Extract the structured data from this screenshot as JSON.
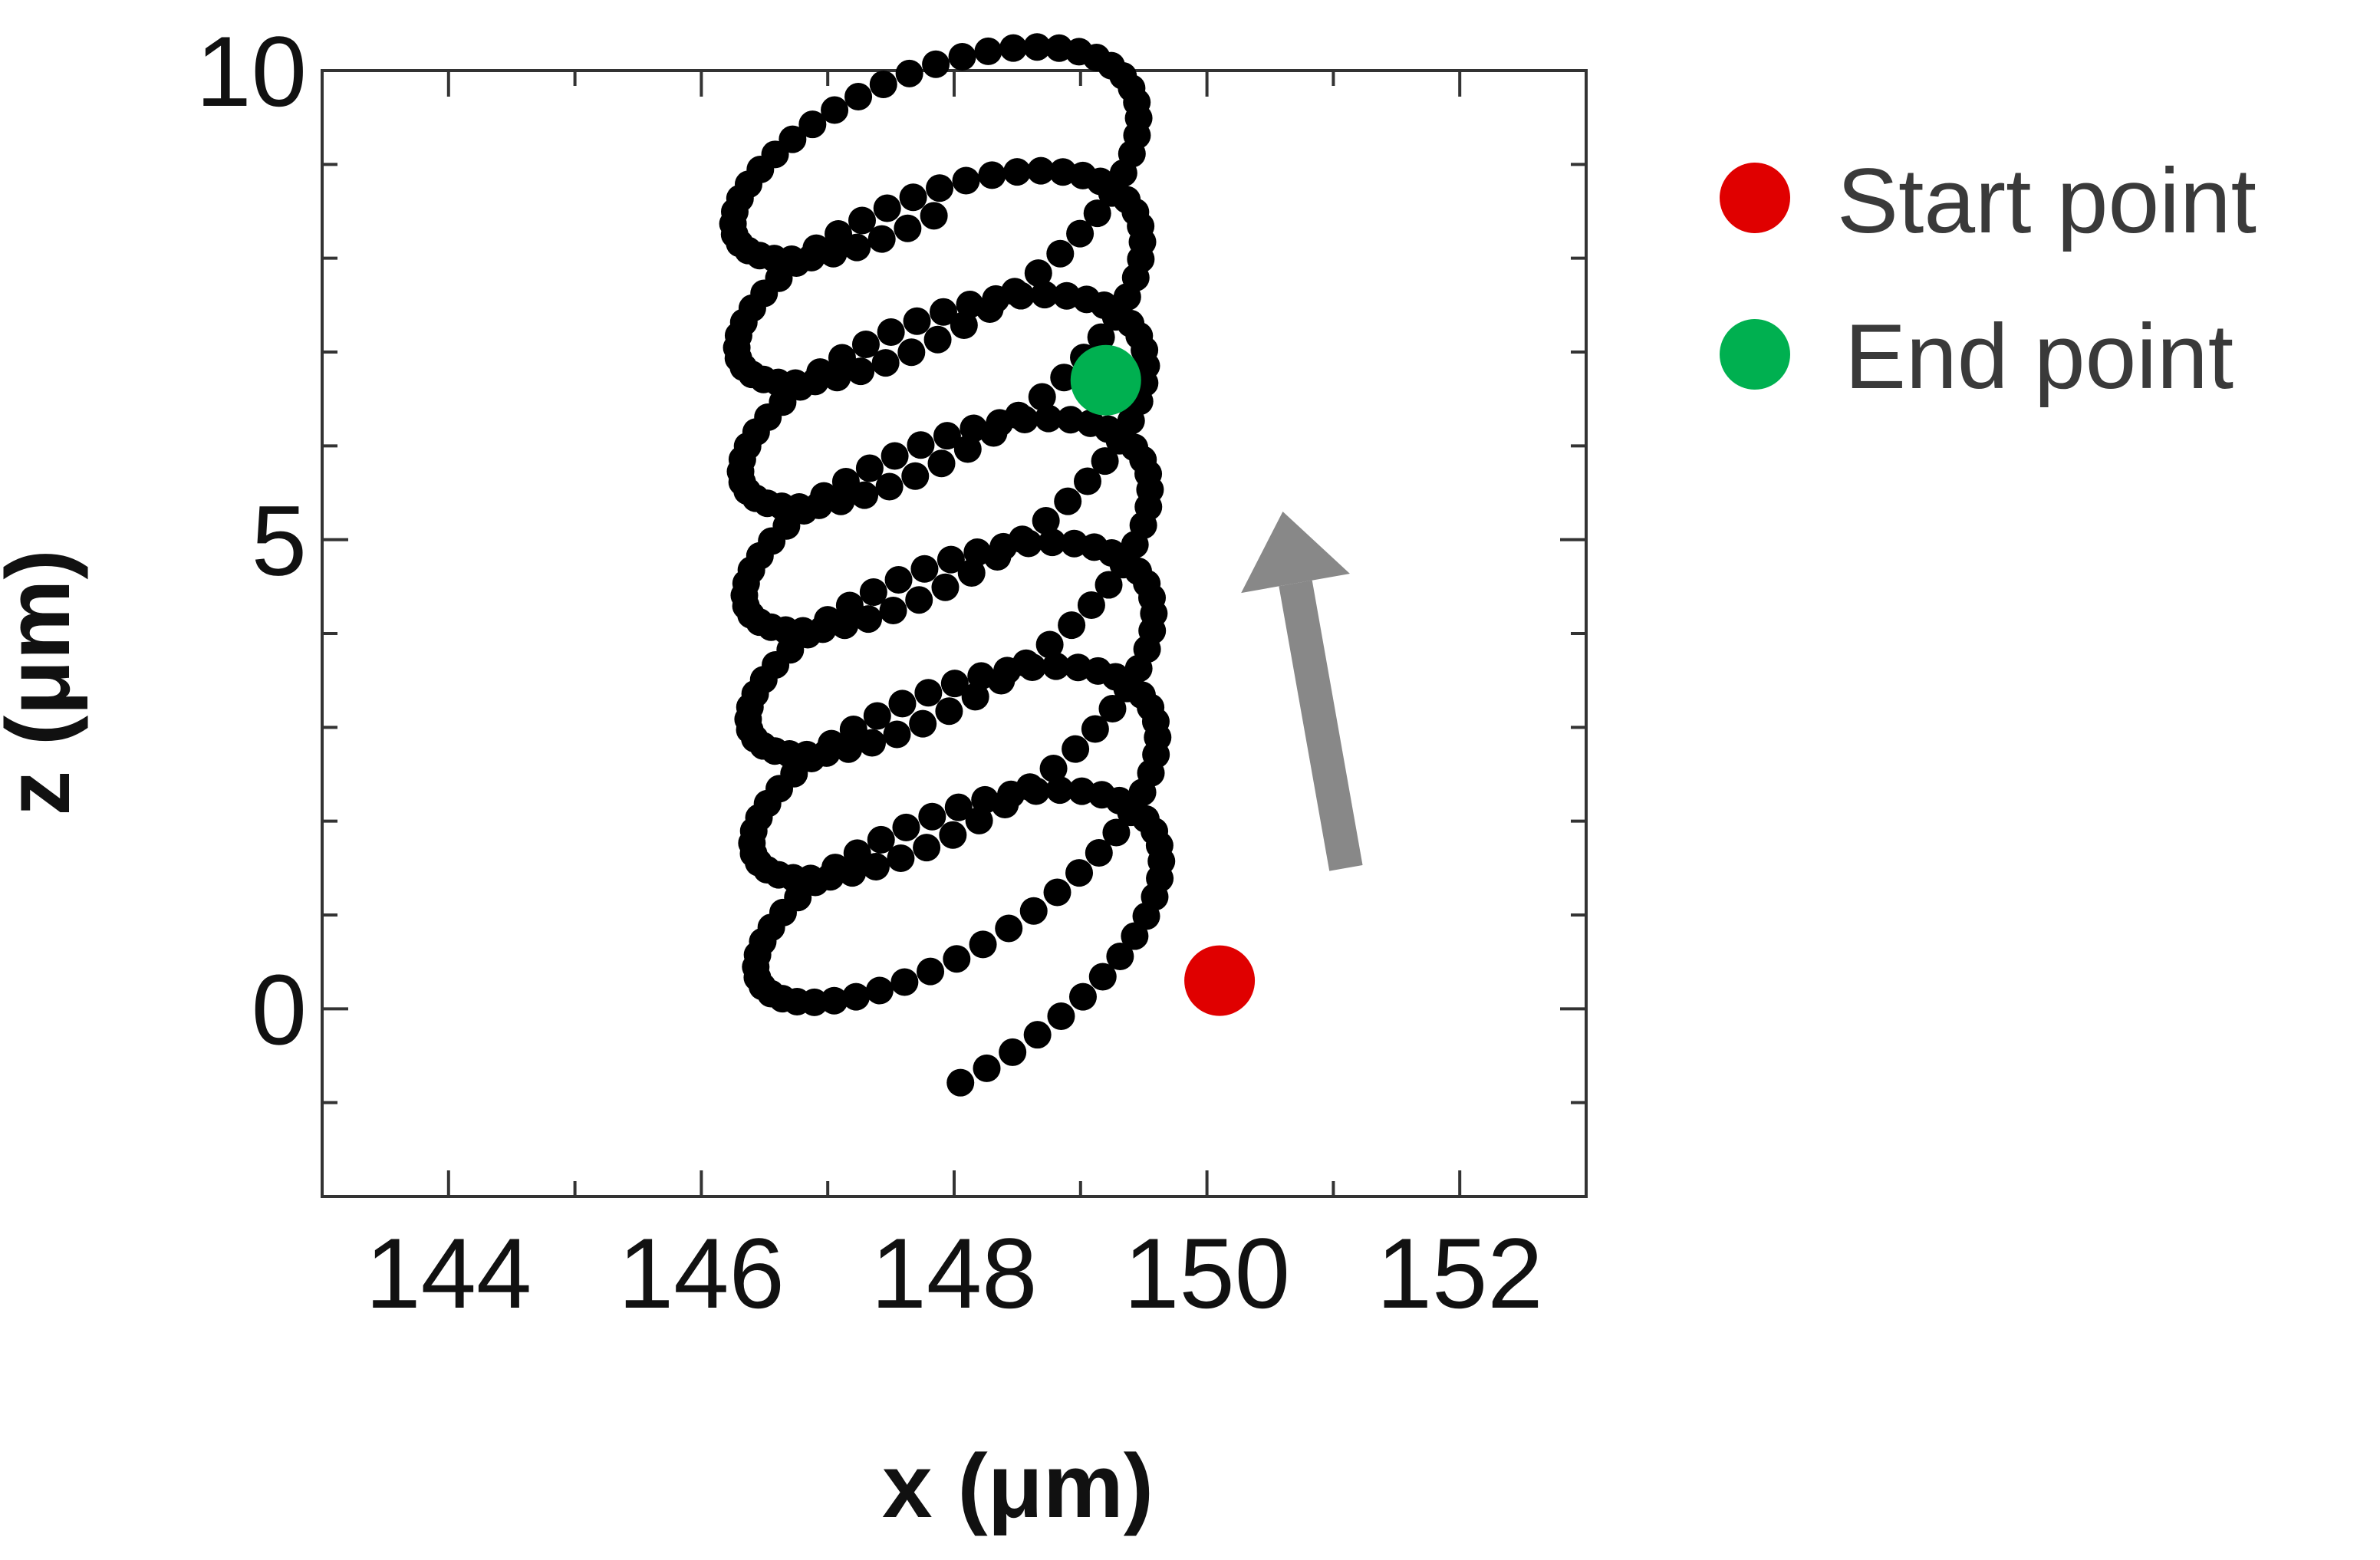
{
  "chart_data": {
    "type": "scatter",
    "title": "",
    "xlabel": "x  (μm)",
    "ylabel": "z  (μm)",
    "xlim": [
      143,
      153
    ],
    "ylim": [
      -2,
      10
    ],
    "x_ticks": [
      144,
      146,
      148,
      150,
      152
    ],
    "y_ticks": [
      0,
      5,
      10
    ],
    "x_tick_labels": [
      "144",
      "146",
      "148",
      "150",
      "152"
    ],
    "y_tick_labels": [
      "0",
      "5",
      "10"
    ],
    "grid": false,
    "legend_position": "right, outside plot, top",
    "trajectory": {
      "description_in_data_units": "helical trajectory of 7 loops rising in z",
      "loops": 7,
      "marker_color": "#000000",
      "direction_arrow": {
        "from": [
          151.1,
          1.5
        ],
        "to": [
          150.6,
          5.3
        ],
        "color": "#888888"
      }
    },
    "series": [
      {
        "name": "Start point",
        "color": "#e00000",
        "x": [
          150.1
        ],
        "y": [
          0.3
        ]
      },
      {
        "name": "End point",
        "color": "#00b050",
        "x": [
          149.2
        ],
        "y": [
          6.7
        ]
      }
    ]
  },
  "legend": [
    {
      "label": "Start point",
      "color": "#e00000"
    },
    {
      "label": "End point",
      "color": "#00b050"
    }
  ]
}
